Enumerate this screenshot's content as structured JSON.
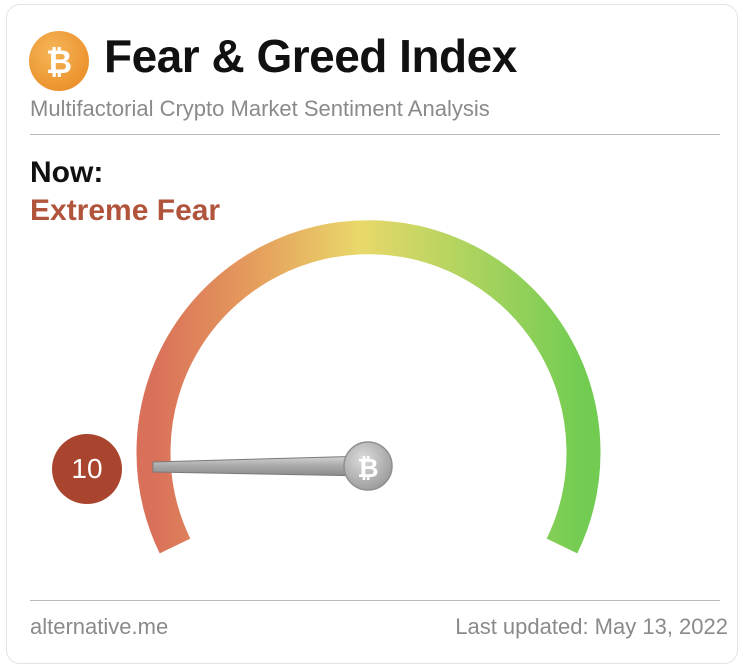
{
  "header": {
    "logo_icon": "bitcoin-icon",
    "logo_symbol": "₿",
    "title": "Fear & Greed Index",
    "subtitle": "Multifactorial Crypto Market Sentiment Analysis"
  },
  "now": {
    "label": "Now:",
    "status": "Extreme Fear"
  },
  "gauge": {
    "value": "10",
    "min": 0,
    "max": 100,
    "needle_icon": "bitcoin-icon",
    "needle_symbol": "₿",
    "colors": {
      "fear": "#d9705a",
      "neutral": "#e9d86a",
      "greed": "#72cc52",
      "badge": "#a9452f",
      "status_text": "#b0543c",
      "logo": "#f2a03d"
    }
  },
  "footer": {
    "source": "alternative.me",
    "last_updated": "Last updated: May 13, 2022"
  }
}
